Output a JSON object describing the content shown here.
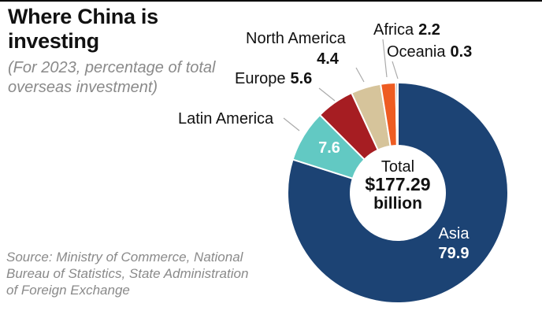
{
  "chart_data": {
    "type": "pie",
    "title": "Where China is investing",
    "subtitle": "(For 2023, percentage of total overseas investment)",
    "categories": [
      "Asia",
      "Latin America",
      "Europe",
      "North America",
      "Africa",
      "Oceania"
    ],
    "values": [
      79.9,
      7.6,
      5.6,
      4.4,
      2.2,
      0.3
    ],
    "value_labels": [
      "79.9",
      "7.6",
      "5.6",
      "4.4",
      "2.2",
      "0.3"
    ],
    "colors": [
      "#1c4374",
      "#62c9c3",
      "#a61d22",
      "#d6c49b",
      "#ee5c22",
      "#7f96ad"
    ],
    "center_total": {
      "label": "Total",
      "value": "$177.29",
      "unit": "billion"
    },
    "source": "Source: Ministry of Commerce, National Bureau of Statistics, State Administration of Foreign Exchange"
  }
}
